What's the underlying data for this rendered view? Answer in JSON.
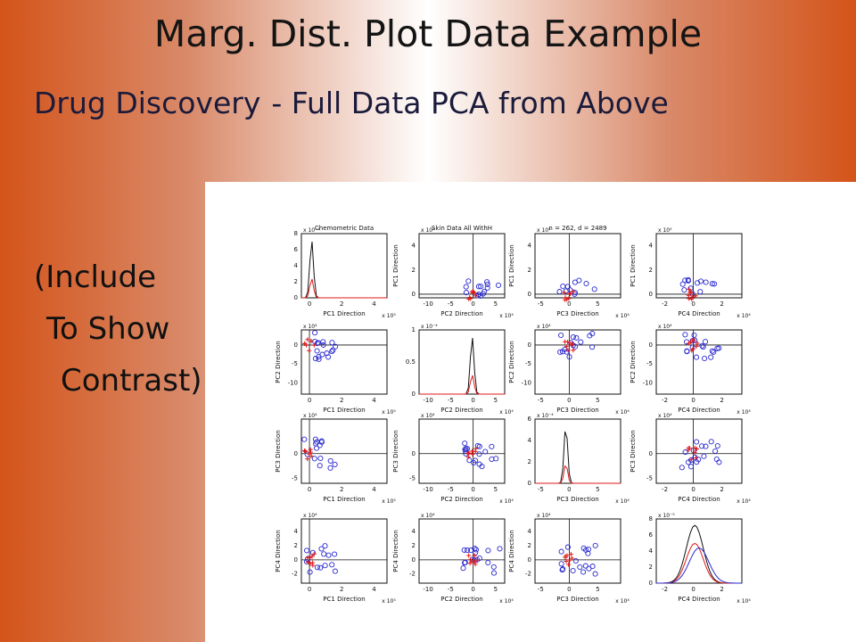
{
  "title": "Marg. Dist. Plot Data Example",
  "subtitle": {
    "part1": "Drug Discovery",
    "part2": "- Full Data PCA from Above"
  },
  "caption": [
    "(Include",
    "To Show",
    "Contrast)"
  ],
  "colors": {
    "edge": "#d4541a",
    "blue_marker": "#2a2ad0",
    "red_marker": "#e01818"
  },
  "matrix": {
    "panel_titles": [
      "Chemometric Data",
      "Skin Data All WithH",
      "n = 262, d = 2489",
      ""
    ],
    "row_labels": [
      "PC1 Direction",
      "PC2 Direction",
      "PC3 Direction",
      "PC4 Direction"
    ],
    "col_labels": [
      "PC1 Direction",
      "PC2 Direction",
      "PC3 Direction",
      "PC4 Direction"
    ],
    "col_exps": [
      "x 10⁵",
      "x 10⁴",
      "x 10⁴",
      "x 10⁴"
    ],
    "row_exps": [
      "x 10⁵",
      "x 10⁴",
      "x 10⁴",
      "x 10⁴"
    ],
    "diag_exps": [
      "x 10⁻⁵",
      "x 10⁻⁴",
      "x 10⁻⁴",
      "x 10⁻⁵"
    ],
    "x_ticks": [
      [
        "0",
        "2",
        "4"
      ],
      [
        "-10",
        "-5",
        "0",
        "5"
      ],
      [
        "-5",
        "0",
        "5"
      ],
      [
        "-2",
        "0",
        "2"
      ]
    ],
    "y_ticks": [
      [
        "0",
        "2",
        "4"
      ],
      [
        "-10",
        "-5",
        "0"
      ],
      [
        "-5",
        "0"
      ],
      [
        "-2",
        "0",
        "2",
        "4"
      ]
    ],
    "diag_y_ticks": [
      [
        "0",
        "2",
        "4",
        "6",
        "8"
      ],
      [
        "0",
        "0.5",
        "1"
      ],
      [
        "0",
        "2",
        "4",
        "6"
      ],
      [
        "0",
        "2",
        "4",
        "6",
        "8"
      ]
    ],
    "x_ranges": [
      [
        -0.5,
        4.8
      ],
      [
        -12,
        7
      ],
      [
        -6,
        9
      ],
      [
        -2.6,
        3.4
      ]
    ],
    "y_ranges": [
      [
        -0.3,
        5.0
      ],
      [
        -13,
        4
      ],
      [
        -6,
        7
      ],
      [
        -3.3,
        5.8
      ]
    ]
  }
}
